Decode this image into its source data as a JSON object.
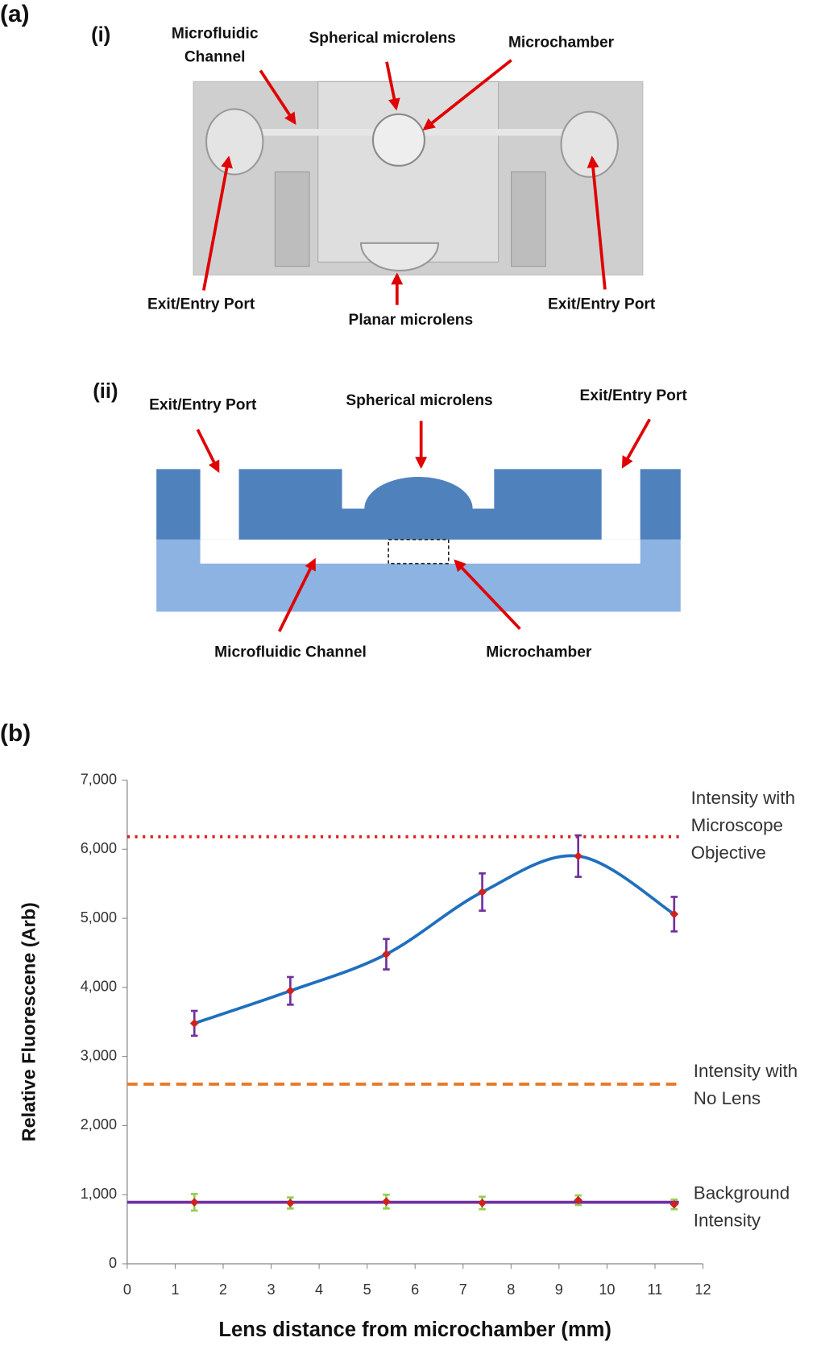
{
  "panel_a": {
    "label": "(a)",
    "photo": {
      "label": "(i)",
      "annotations": [
        [
          "Microfluidic",
          "Channel"
        ],
        [
          "Spherical microlens"
        ],
        [
          "Microchamber"
        ],
        [
          "Exit/Entry Port"
        ],
        [
          "Planar microlens"
        ],
        [
          "Exit/Entry Port"
        ]
      ]
    },
    "schematic": {
      "label": "(ii)",
      "annotations": [
        [
          "Exit/Entry Port"
        ],
        [
          "Spherical microlens"
        ],
        [
          "Exit/Entry Port"
        ],
        [
          "Microfluidic Channel"
        ],
        [
          "Microchamber"
        ]
      ]
    }
  },
  "panel_b_label": "(b)",
  "chart_data": {
    "type": "line",
    "xlabel": "Lens distance from microchamber (mm)",
    "ylabel": "Relative Fluorescene (Arb)",
    "x": [
      1.4,
      3.4,
      5.4,
      7.4,
      9.4,
      11.4
    ],
    "series": [
      {
        "color": "#d02020",
        "line_color": "#1f6fbf",
        "error_color": "#7030a0",
        "smooth": true,
        "values": [
          3480,
          3950,
          4480,
          5380,
          5900,
          5060
        ],
        "errors": [
          180,
          200,
          220,
          270,
          300,
          250
        ]
      },
      {
        "color": "#d02020",
        "error_color": "#92d050",
        "smooth": false,
        "values": [
          890,
          880,
          900,
          880,
          920,
          860
        ],
        "errors": [
          120,
          80,
          100,
          90,
          70,
          70
        ]
      }
    ],
    "reference_lines": [
      {
        "value": 6180,
        "color": "#e02020",
        "style": "dotted",
        "annotation": [
          "Intensity with",
          "Microscope",
          "Objective"
        ]
      },
      {
        "value": 2600,
        "color": "#e87722",
        "style": "dashed",
        "annotation": [
          "Intensity with",
          "No Lens"
        ]
      },
      {
        "value": 890,
        "color": "#7030a0",
        "style": "solid",
        "annotation": [
          "Background",
          "Intensity"
        ]
      }
    ],
    "xlim": [
      0,
      12
    ],
    "xticks": [
      0,
      1,
      2,
      3,
      4,
      5,
      6,
      7,
      8,
      9,
      10,
      11,
      12
    ],
    "ylim": [
      0,
      7000
    ],
    "yticks": [
      0,
      {
        "value": 1000,
        "label": "1,000"
      },
      {
        "value": 2000,
        "label": "2,000"
      },
      {
        "value": 3000,
        "label": "3,000"
      },
      {
        "value": 4000,
        "label": "4,000"
      },
      {
        "value": 5000,
        "label": "5,000"
      },
      {
        "value": 6000,
        "label": "6,000"
      },
      {
        "value": 7000,
        "label": "7,000"
      }
    ]
  }
}
